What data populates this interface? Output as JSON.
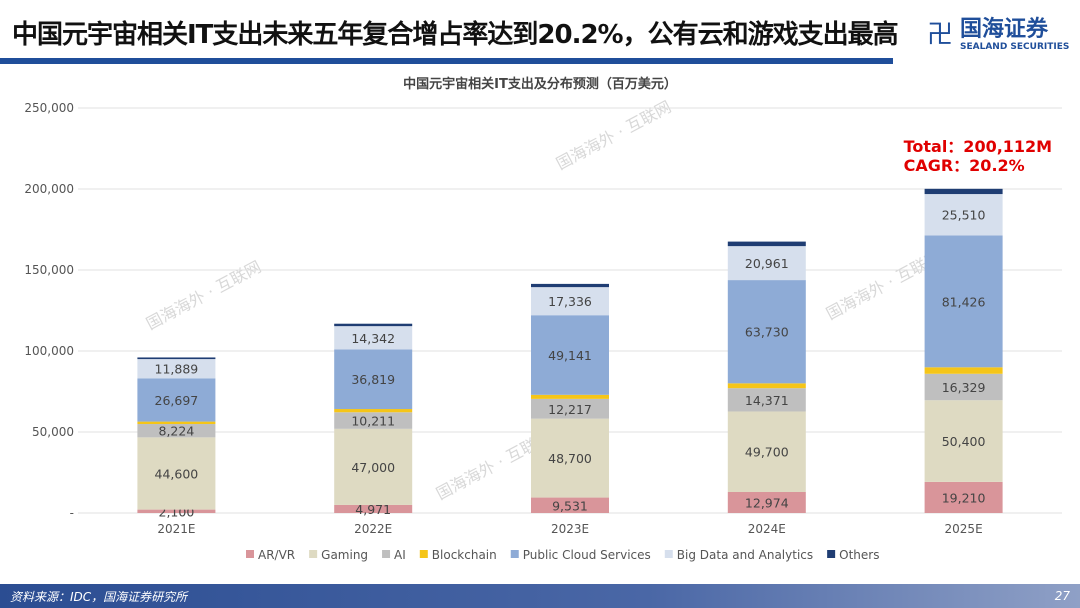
{
  "header": {
    "title": "中国元宇宙相关IT支出未来五年复合增占率达到20.2%，公有云和游戏支出最高",
    "logo_cn": "国海证券",
    "logo_en": "SEALAND SECURITIES"
  },
  "footer": {
    "source": "资料来源：IDC，国海证券研究所",
    "page": "27"
  },
  "watermark": "国海海外 · 互联网",
  "chart_data": {
    "type": "bar",
    "stacked": true,
    "title": "中国元宇宙相关IT支出及分布预测（百万美元）",
    "categories": [
      "2021E",
      "2022E",
      "2023E",
      "2024E",
      "2025E"
    ],
    "ylim": [
      0,
      250000
    ],
    "yticks": [
      0,
      50000,
      100000,
      150000,
      200000,
      250000
    ],
    "ytick_labels": [
      "-",
      "50,000",
      "100,000",
      "150,000",
      "200,000",
      "250,000"
    ],
    "grid": true,
    "legend": "bottom",
    "series": [
      {
        "name": "AR/VR",
        "color": "#d9959a",
        "values": [
          2100,
          4971,
          9531,
          12974,
          19210
        ],
        "labels": [
          "2,100",
          "4,971",
          "9,531",
          "12,974",
          "19,210"
        ]
      },
      {
        "name": "Gaming",
        "color": "#dedac2",
        "values": [
          44600,
          47000,
          48700,
          49700,
          50400
        ],
        "labels": [
          "44,600",
          "47,000",
          "48,700",
          "49,700",
          "50,400"
        ]
      },
      {
        "name": "AI",
        "color": "#bfbfbf",
        "values": [
          8224,
          10211,
          12217,
          14371,
          16329
        ],
        "labels": [
          "8,224",
          "10,211",
          "12,217",
          "14,371",
          "16,329"
        ]
      },
      {
        "name": "Blockchain",
        "color": "#f5c518",
        "values": [
          1500,
          2000,
          2500,
          3000,
          4000
        ],
        "labels": [
          "",
          "",
          "",
          "",
          ""
        ]
      },
      {
        "name": "Public Cloud Services",
        "color": "#8eabd6",
        "values": [
          26697,
          36819,
          49141,
          63730,
          81426
        ],
        "labels": [
          "26,697",
          "36,819",
          "49,141",
          "63,730",
          "81,426"
        ]
      },
      {
        "name": "Big Data and Analytics",
        "color": "#d6dfed",
        "values": [
          11889,
          14342,
          17336,
          20961,
          25510
        ],
        "labels": [
          "11,889",
          "14,342",
          "17,336",
          "20,961",
          "25,510"
        ]
      },
      {
        "name": "Others",
        "color": "#1f3d73",
        "values": [
          1000,
          1500,
          2000,
          2800,
          3237
        ],
        "labels": [
          "",
          "",
          "",
          "",
          ""
        ]
      }
    ],
    "annotation": {
      "lines": [
        "Total：200,112M",
        "CAGR：20.2%"
      ],
      "color": "#e00000"
    }
  }
}
